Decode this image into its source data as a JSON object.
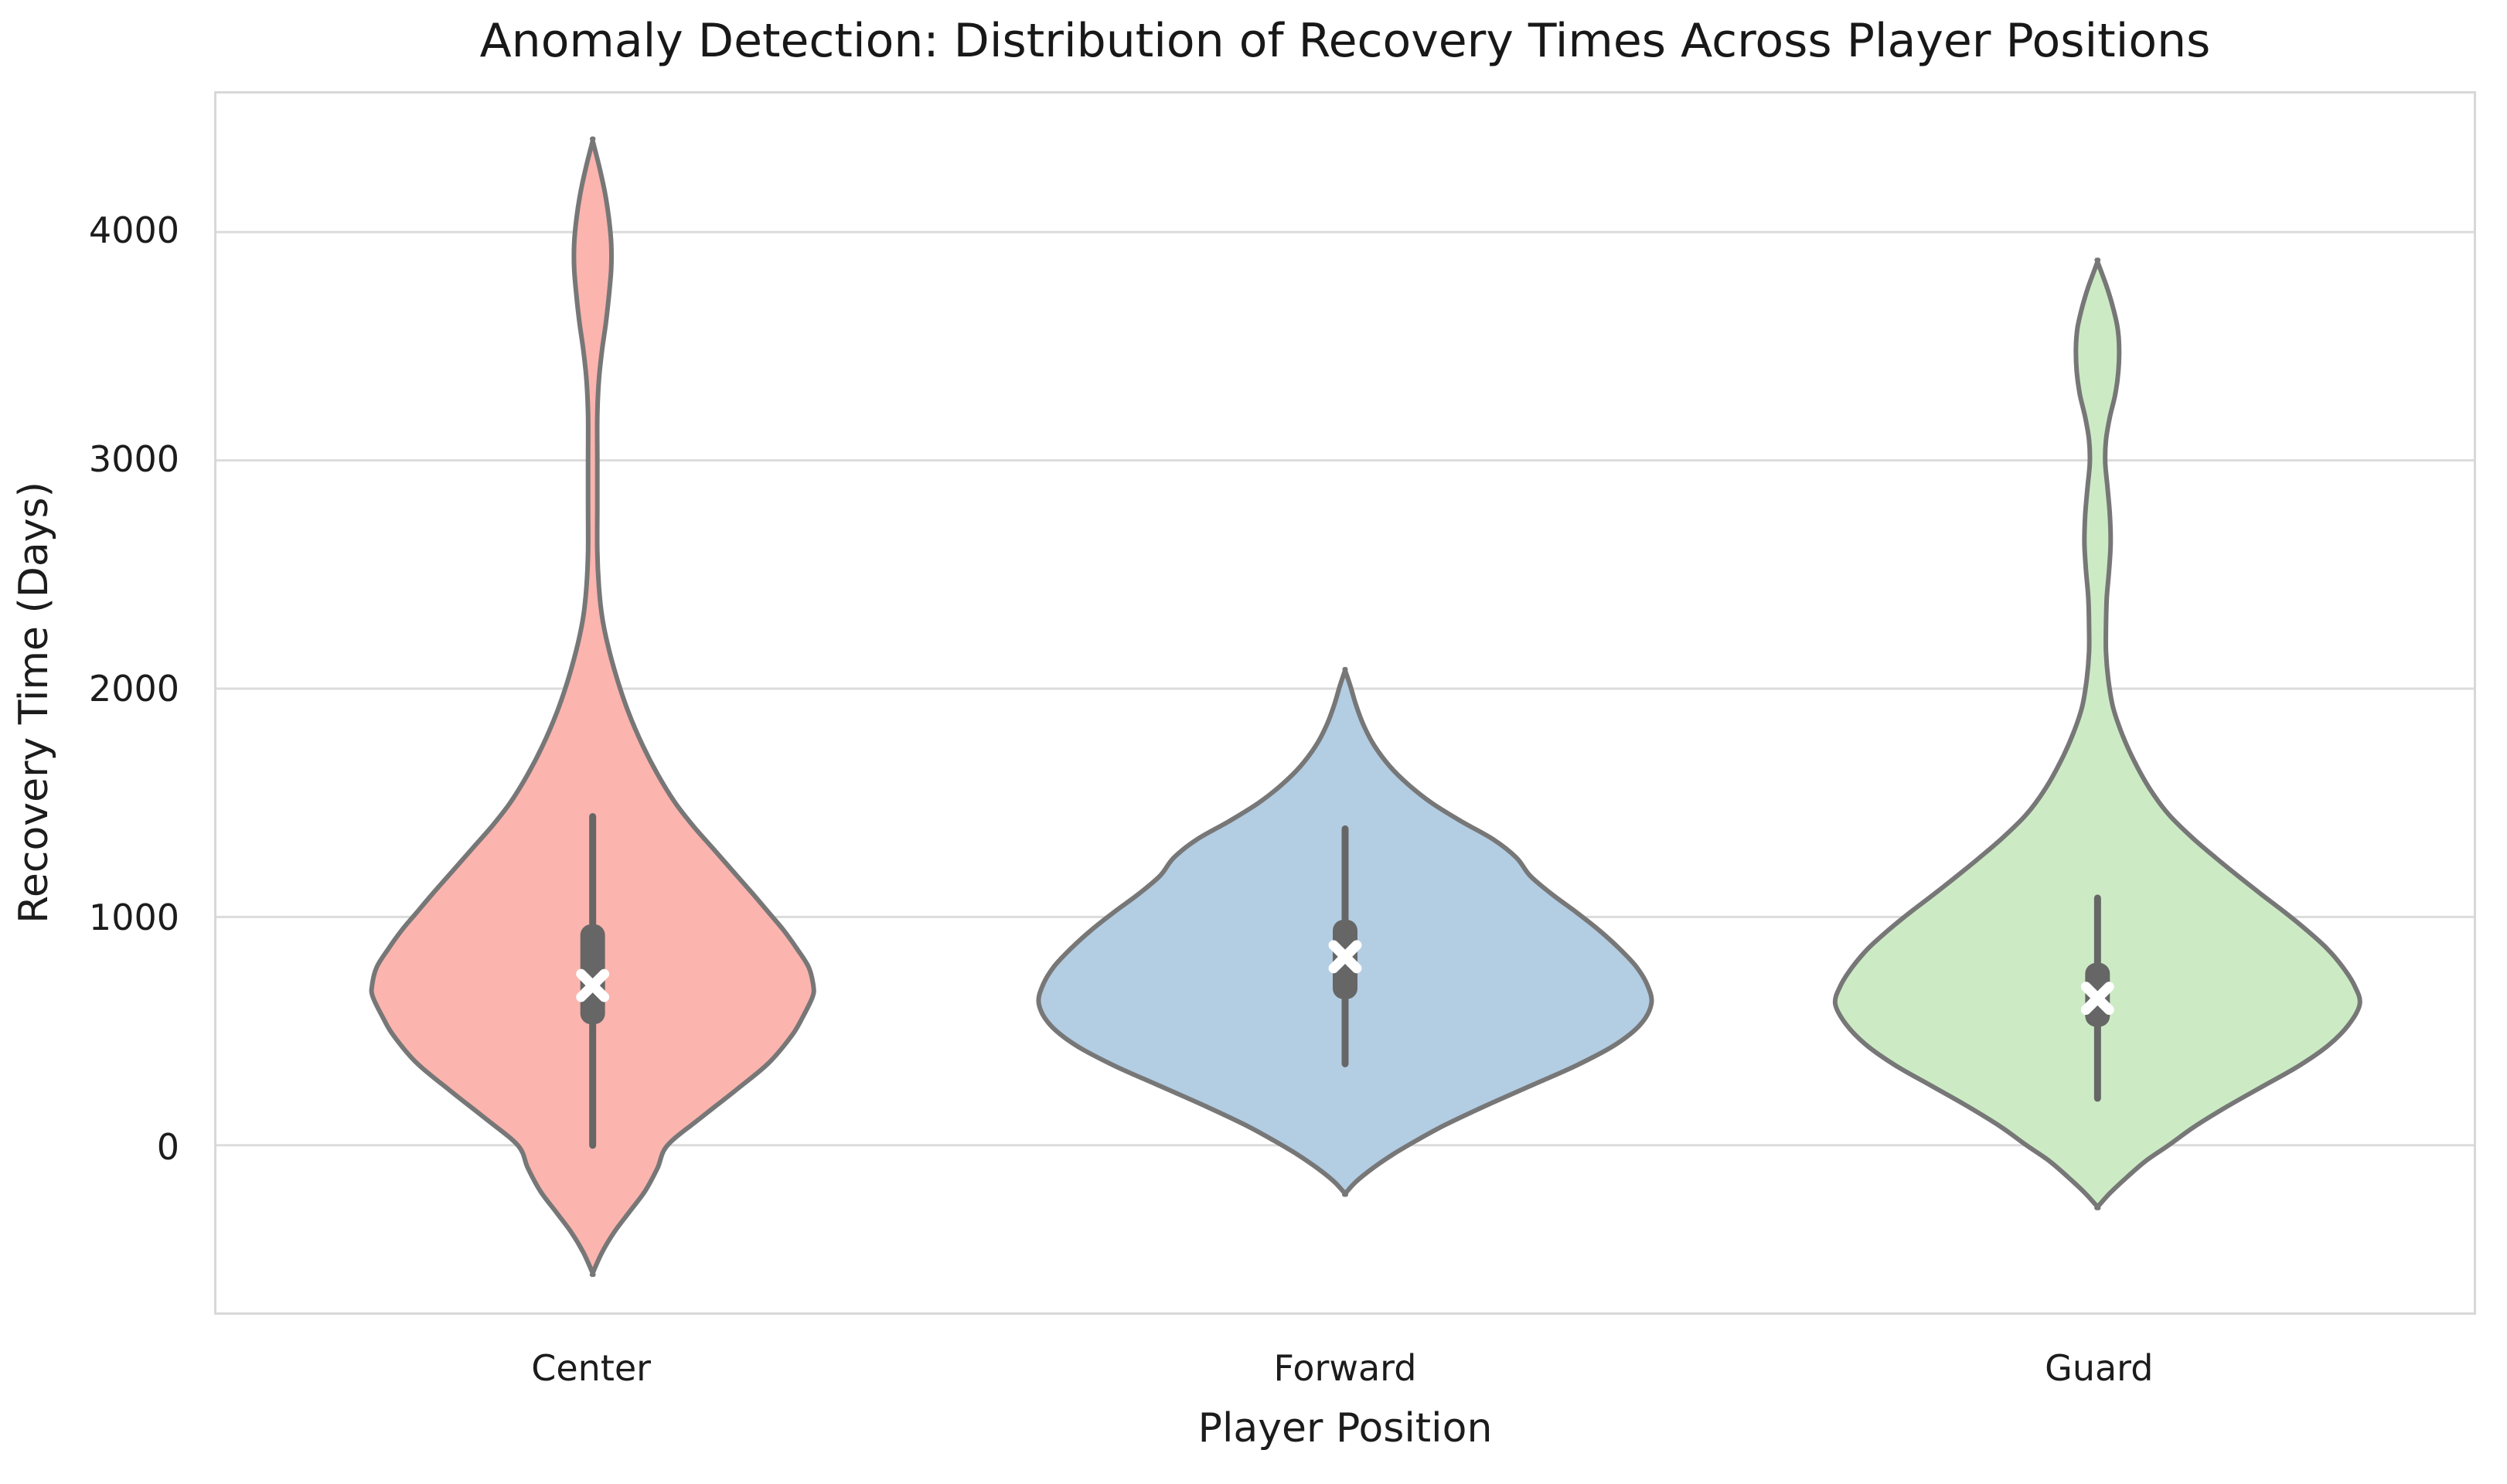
{
  "chart_data": {
    "type": "violin",
    "title": "Anomaly Detection: Distribution of Recovery Times Across Player Positions",
    "xlabel": "Player Position",
    "ylabel": "Recovery Time (Days)",
    "categories": [
      "Center",
      "Forward",
      "Guard"
    ],
    "yticks": [
      4000,
      3000,
      2000,
      1000,
      0
    ],
    "ytick_labels": [
      "4000",
      "3000",
      "2000",
      "1000",
      "0"
    ],
    "ylim": [
      -732,
      4607
    ],
    "grid": true,
    "legend": false,
    "inner": "box-with-median-x-marker",
    "series": [
      {
        "name": "Center",
        "fill": "#FBB4AE",
        "stats": {
          "whisker_low": 0,
          "q1": 530,
          "median": 700,
          "q3": 968,
          "whisker_high": 1440
        },
        "kde_range": [
          -560,
          4400
        ],
        "secondary_mode_near": 3950,
        "profile": [
          [
            -560,
            0
          ],
          [
            -560,
            0
          ],
          [
            -470,
            12
          ],
          [
            -380,
            28
          ],
          [
            -290,
            48
          ],
          [
            -200,
            68
          ],
          [
            -100,
            84
          ],
          [
            0,
            97
          ],
          [
            120,
            140
          ],
          [
            240,
            185
          ],
          [
            360,
            228
          ],
          [
            480,
            258
          ],
          [
            560,
            272
          ],
          [
            650,
            285
          ],
          [
            700,
            286
          ],
          [
            780,
            280
          ],
          [
            860,
            265
          ],
          [
            940,
            248
          ],
          [
            1020,
            228
          ],
          [
            1100,
            208
          ],
          [
            1200,
            182
          ],
          [
            1300,
            156
          ],
          [
            1400,
            130
          ],
          [
            1500,
            107
          ],
          [
            1620,
            85
          ],
          [
            1750,
            65
          ],
          [
            1900,
            46
          ],
          [
            2050,
            31
          ],
          [
            2200,
            19
          ],
          [
            2320,
            12
          ],
          [
            2450,
            8
          ],
          [
            2600,
            6
          ],
          [
            2800,
            6
          ],
          [
            3000,
            6
          ],
          [
            3200,
            6
          ],
          [
            3350,
            8
          ],
          [
            3480,
            12
          ],
          [
            3600,
            17
          ],
          [
            3720,
            21
          ],
          [
            3840,
            24
          ],
          [
            3950,
            24
          ],
          [
            4060,
            21
          ],
          [
            4170,
            16
          ],
          [
            4280,
            9
          ],
          [
            4400,
            0
          ],
          [
            4400,
            0
          ]
        ]
      },
      {
        "name": "Forward",
        "fill": "#B3CDE3",
        "stats": {
          "whisker_low": 357,
          "q1": 640,
          "median": 826,
          "q3": 988,
          "whisker_high": 1386
        },
        "kde_range": [
          -212,
          2080
        ],
        "profile": [
          [
            -212,
            0
          ],
          [
            -212,
            0
          ],
          [
            -160,
            14
          ],
          [
            -100,
            36
          ],
          [
            -40,
            62
          ],
          [
            20,
            92
          ],
          [
            90,
            130
          ],
          [
            170,
            180
          ],
          [
            260,
            240
          ],
          [
            350,
            300
          ],
          [
            440,
            350
          ],
          [
            530,
            383
          ],
          [
            620,
            397
          ],
          [
            700,
            392
          ],
          [
            780,
            378
          ],
          [
            860,
            356
          ],
          [
            940,
            330
          ],
          [
            1020,
            300
          ],
          [
            1100,
            268
          ],
          [
            1180,
            240
          ],
          [
            1260,
            222
          ],
          [
            1340,
            192
          ],
          [
            1420,
            150
          ],
          [
            1500,
            112
          ],
          [
            1580,
            82
          ],
          [
            1660,
            58
          ],
          [
            1750,
            38
          ],
          [
            1840,
            24
          ],
          [
            1930,
            14
          ],
          [
            2010,
            7
          ],
          [
            2080,
            0
          ],
          [
            2080,
            0
          ]
        ]
      },
      {
        "name": "Guard",
        "fill": "#CCEBC5",
        "stats": {
          "whisker_low": 206,
          "q1": 519,
          "median": 644,
          "q3": 799,
          "whisker_high": 1083
        },
        "kde_range": [
          -270,
          3870
        ],
        "secondary_mode_near": 3490,
        "profile": [
          [
            -270,
            0
          ],
          [
            -270,
            0
          ],
          [
            -210,
            16
          ],
          [
            -140,
            38
          ],
          [
            -70,
            62
          ],
          [
            0,
            92
          ],
          [
            80,
            125
          ],
          [
            170,
            168
          ],
          [
            260,
            215
          ],
          [
            350,
            262
          ],
          [
            440,
            300
          ],
          [
            530,
            326
          ],
          [
            620,
            340
          ],
          [
            700,
            333
          ],
          [
            780,
            318
          ],
          [
            860,
            298
          ],
          [
            940,
            272
          ],
          [
            1020,
            243
          ],
          [
            1100,
            212
          ],
          [
            1180,
            182
          ],
          [
            1260,
            153
          ],
          [
            1350,
            122
          ],
          [
            1450,
            92
          ],
          [
            1560,
            68
          ],
          [
            1680,
            48
          ],
          [
            1800,
            32
          ],
          [
            1920,
            20
          ],
          [
            2040,
            14
          ],
          [
            2160,
            11
          ],
          [
            2280,
            11
          ],
          [
            2400,
            12
          ],
          [
            2520,
            15
          ],
          [
            2640,
            17
          ],
          [
            2760,
            16
          ],
          [
            2880,
            13
          ],
          [
            2990,
            10
          ],
          [
            3090,
            11
          ],
          [
            3190,
            16
          ],
          [
            3290,
            23
          ],
          [
            3390,
            27
          ],
          [
            3490,
            28
          ],
          [
            3580,
            26
          ],
          [
            3670,
            20
          ],
          [
            3760,
            12
          ],
          [
            3870,
            0
          ],
          [
            3870,
            0
          ]
        ]
      }
    ],
    "style": {
      "edge_color": "#777777",
      "box_color": "#666666",
      "median_marker_color": "#ffffff",
      "grid_color": "#dcdcdc",
      "spine_color": "#d8d8d8",
      "text_color": "#1c1c1c",
      "background": "#ffffff"
    }
  }
}
